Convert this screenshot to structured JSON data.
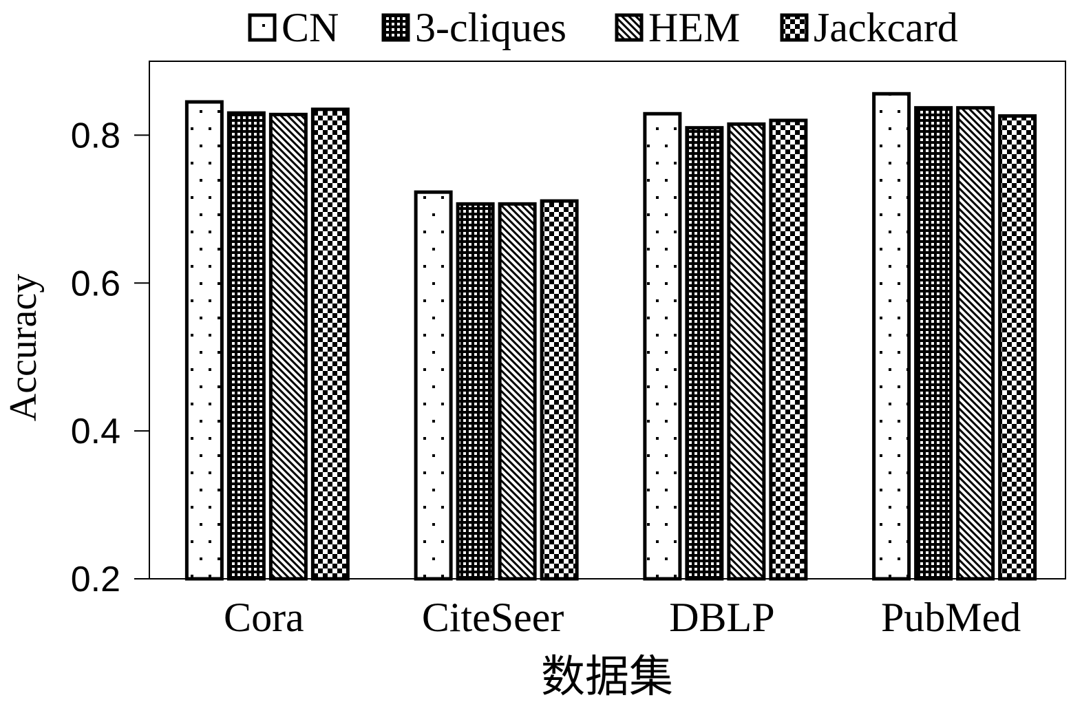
{
  "chart_data": {
    "type": "bar",
    "categories": [
      "Cora",
      "CiteSeer",
      "DBLP",
      "PubMed"
    ],
    "series": [
      {
        "name": "CN",
        "pattern": "sparse-dots",
        "values": [
          0.845,
          0.723,
          0.829,
          0.856
        ]
      },
      {
        "name": "3-cliques",
        "pattern": "dense-grid",
        "values": [
          0.83,
          0.707,
          0.81,
          0.837
        ]
      },
      {
        "name": "HEM",
        "pattern": "diagonal",
        "values": [
          0.828,
          0.707,
          0.815,
          0.837
        ]
      },
      {
        "name": "Jackcard",
        "pattern": "checker",
        "values": [
          0.835,
          0.711,
          0.82,
          0.826
        ]
      }
    ],
    "xlabel": "数据集",
    "ylabel": "Accuracy",
    "ylim": [
      0.2,
      0.9
    ],
    "yticks": [
      "0.2",
      "0.4",
      "0.6",
      "0.8"
    ],
    "grid": false,
    "legend": "top",
    "colors": {
      "stroke": "#000000",
      "fill": "#ffffff"
    }
  }
}
